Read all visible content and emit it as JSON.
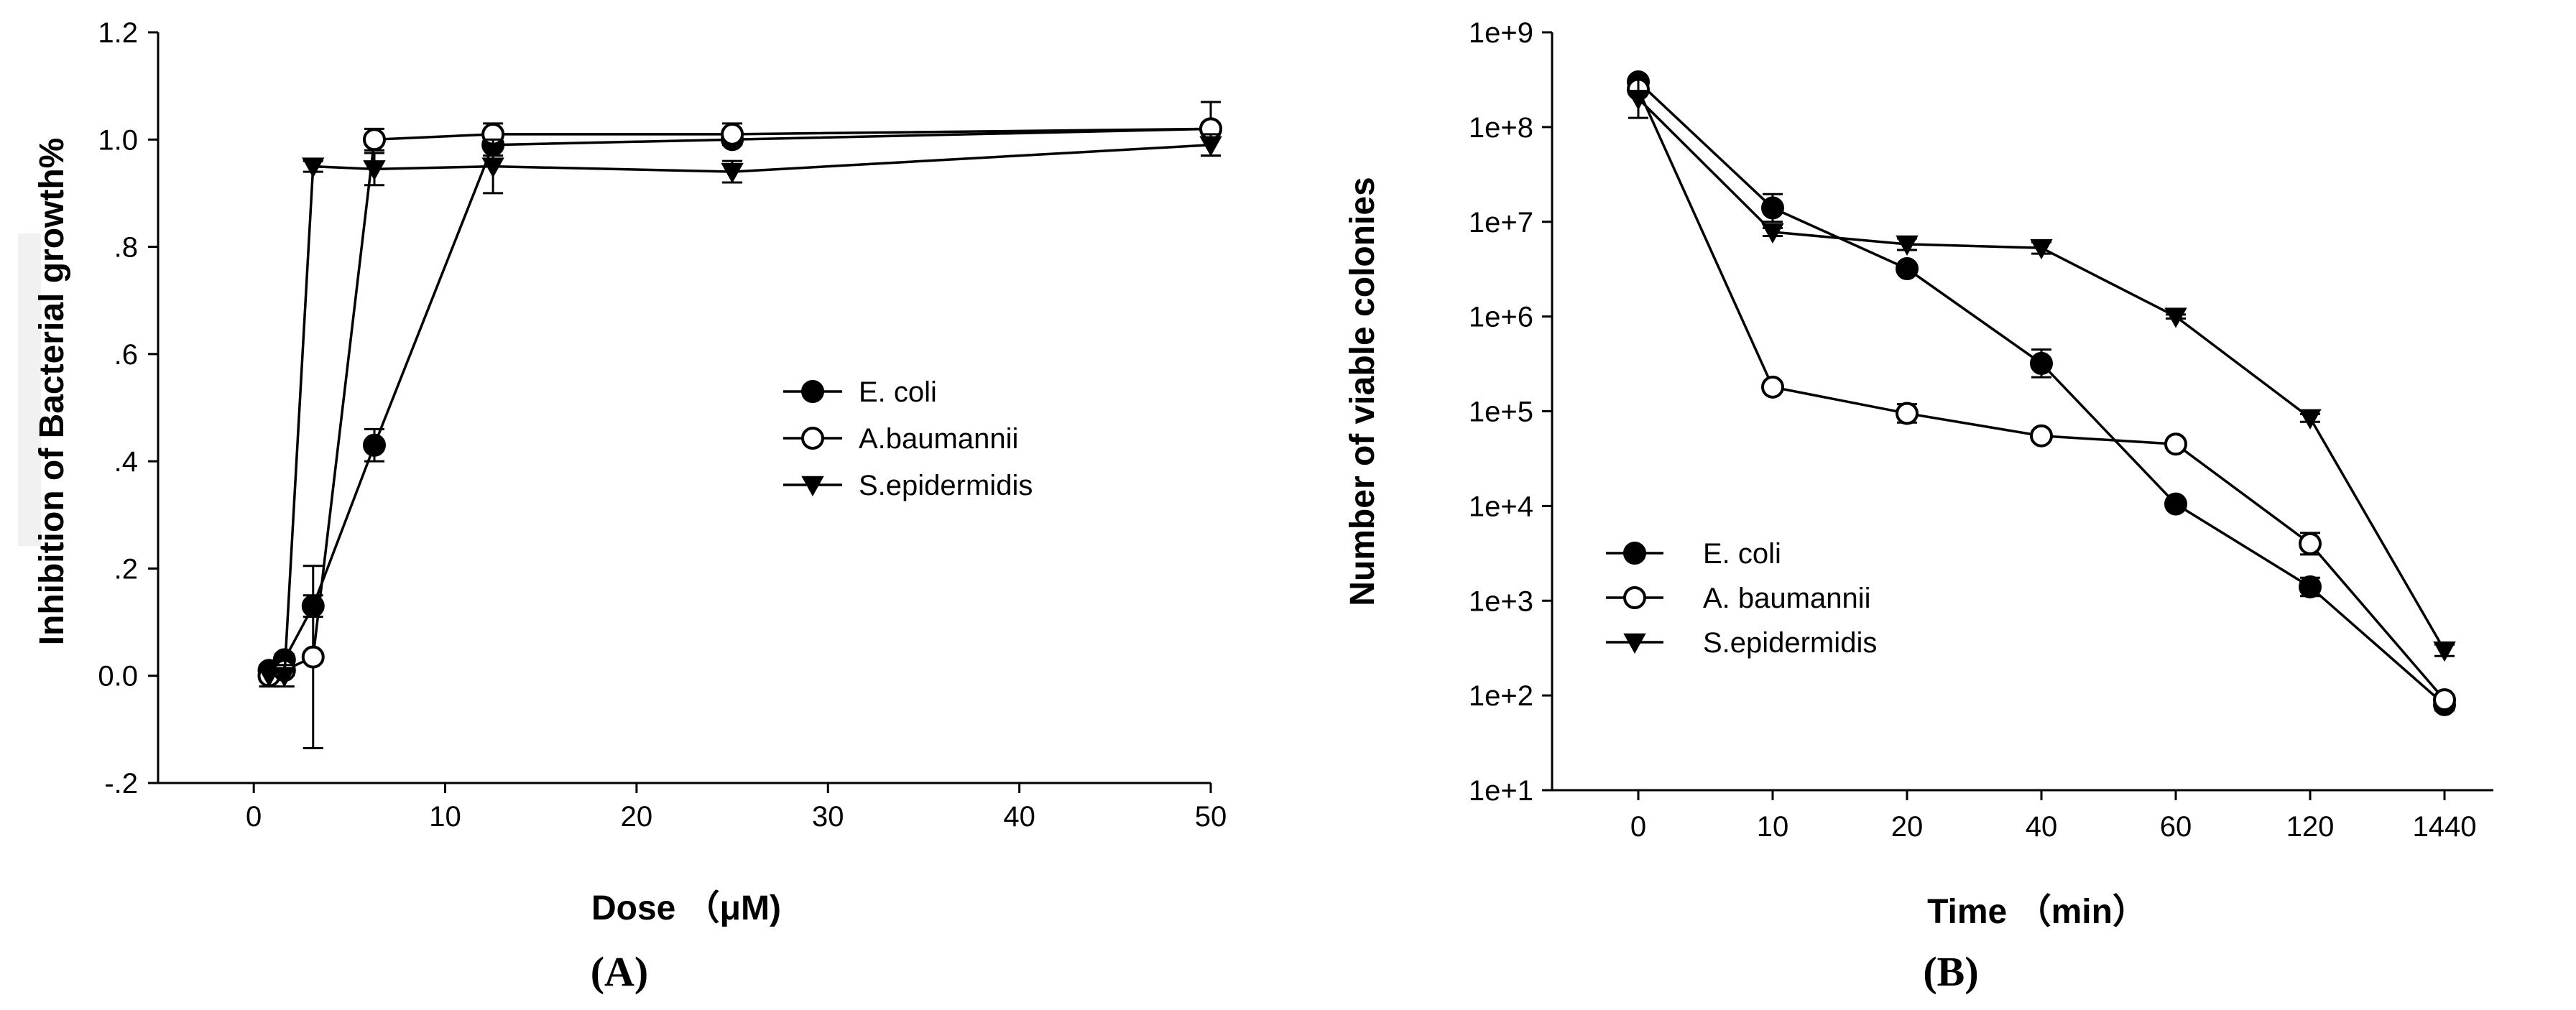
{
  "chart_data": [
    {
      "type": "line",
      "panel_label": "(A)",
      "xlabel": "Dose （μM)",
      "ylabel": "Inhibition of Bacterial growth%",
      "xlim": [
        -5,
        50
      ],
      "ylim": [
        -0.2,
        1.2
      ],
      "x_ticks": [
        0,
        10,
        20,
        30,
        40,
        50
      ],
      "x_tick_labels": [
        "0",
        "10",
        "20",
        "30",
        "40",
        "50"
      ],
      "y_ticks": [
        -0.2,
        0,
        0.2,
        0.4,
        0.6,
        0.8,
        1.0,
        1.2
      ],
      "y_tick_labels": [
        "-.2",
        "0.0",
        ".2",
        ".4",
        ".6",
        ".8",
        "1.0",
        "1.2"
      ],
      "legend_position": "center-right",
      "series": [
        {
          "name": "E. coli",
          "marker": "filled-circle",
          "x": [
            0.8,
            1.6,
            3.1,
            6.3,
            12.5,
            25,
            50
          ],
          "y": [
            0.01,
            0.03,
            0.13,
            0.43,
            0.99,
            1.0,
            1.02
          ],
          "err": [
            0.01,
            0.01,
            0.02,
            0.03,
            0.02,
            0.01,
            0.05
          ]
        },
        {
          "name": "A.baumannii",
          "marker": "open-circle",
          "x": [
            0.8,
            1.6,
            3.1,
            6.3,
            12.5,
            25,
            50
          ],
          "y": [
            0.0,
            0.01,
            0.035,
            1.0,
            1.01,
            1.01,
            1.02
          ],
          "err": [
            0.01,
            0.01,
            0.17,
            0.02,
            0.02,
            0.02,
            0.01
          ]
        },
        {
          "name": "S.epidermidis",
          "marker": "filled-triangle-down",
          "x": [
            0.8,
            1.6,
            3.1,
            6.3,
            12.5,
            25,
            50
          ],
          "y": [
            0.0,
            0.0,
            0.95,
            0.945,
            0.95,
            0.94,
            0.99
          ],
          "err": [
            0.02,
            0.02,
            0.01,
            0.03,
            0.05,
            0.02,
            0.02
          ]
        }
      ]
    },
    {
      "type": "line",
      "panel_label": "(B)",
      "xlabel": "Time （min）",
      "ylabel": "Number of viable colonies",
      "y_scale": "log",
      "ylim": [
        10,
        1000000000
      ],
      "x_categories": [
        "0",
        "10",
        "20",
        "40",
        "60",
        "120",
        "1440"
      ],
      "y_tick_labels": [
        "1e+1",
        "1e+2",
        "1e+3",
        "1e+4",
        "1e+5",
        "1e+6",
        "1e+7",
        "1e+8",
        "1e+9"
      ],
      "legend_position": "bottom-left",
      "series": [
        {
          "name": "E. coli",
          "marker": "filled-circle",
          "values": [
            300000000,
            14000000,
            3200000,
            320000,
            10500,
            1400,
            80
          ],
          "err_factor": [
            1.1,
            1.4,
            1.1,
            1.4,
            1.1,
            1.25,
            1.15
          ]
        },
        {
          "name": "A. baumannii",
          "marker": "open-circle",
          "values": [
            250000000,
            180000,
            95000,
            55000,
            45000,
            4000,
            90
          ],
          "err_factor": [
            1.1,
            1.1,
            1.25,
            1.1,
            1.1,
            1.3,
            1.1
          ]
        },
        {
          "name": "S.epidermidis",
          "marker": "filled-triangle-down",
          "values": [
            200000000,
            7800000,
            5800000,
            5300000,
            1000000,
            85000,
            300
          ],
          "err_factor": [
            1.6,
            1.1,
            1.15,
            1.15,
            1.05,
            1.1,
            1.15
          ]
        }
      ]
    }
  ]
}
